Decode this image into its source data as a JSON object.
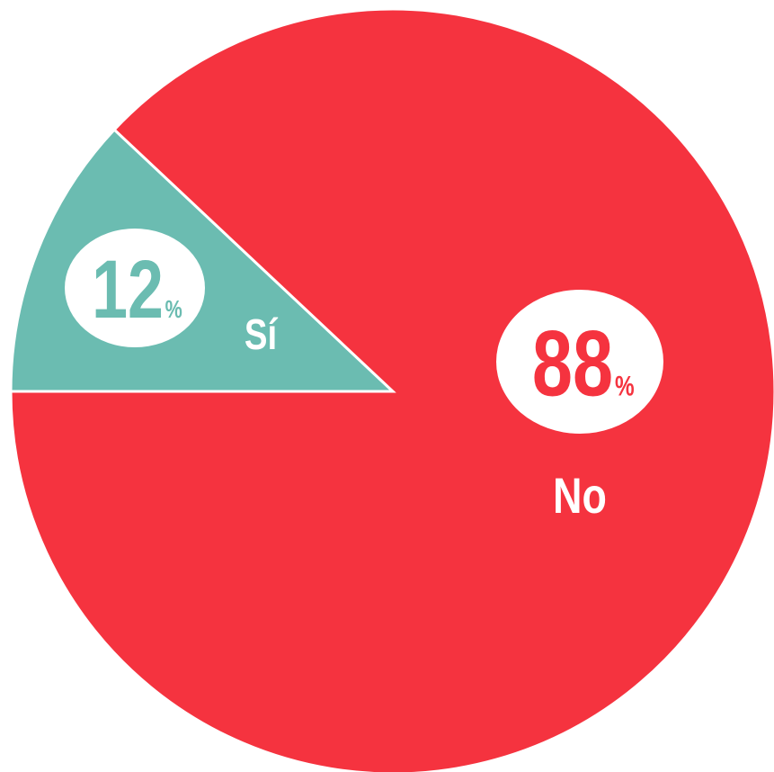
{
  "chart_data": {
    "type": "pie",
    "categories": [
      "Sí",
      "No"
    ],
    "values": [
      12,
      88
    ],
    "unit": "%",
    "colors": [
      "#6bbcb1",
      "#f5333f"
    ]
  }
}
